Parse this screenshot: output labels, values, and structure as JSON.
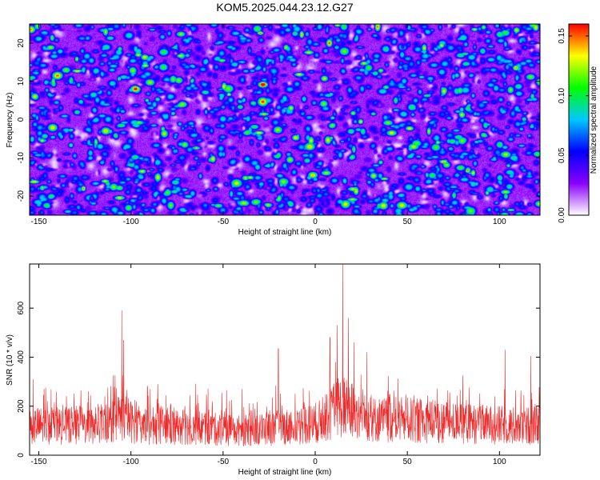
{
  "title": "KOM5.2025.044.23.12.G27",
  "colors": {
    "background": "#ffffff",
    "snr_line": "#ee2a2a",
    "axis": "#000000"
  },
  "chart_data": [
    {
      "type": "heatmap",
      "xlabel": "Height of straight line (km)",
      "ylabel": "Frequency (Hz)",
      "xlim": [
        -155,
        122
      ],
      "ylim": [
        -25,
        25
      ],
      "x_ticks": [
        -150,
        -100,
        -50,
        0,
        50,
        100
      ],
      "y_ticks": [
        -20,
        -10,
        0,
        10,
        20
      ],
      "colorbar": {
        "label": "Normalized spectral amplitude",
        "range": [
          0,
          0.16
        ],
        "ticks": [
          0.0,
          0.05,
          0.1,
          0.15
        ],
        "tick_labels": [
          "0.00",
          "0.05",
          "0.10",
          "0.15"
        ],
        "colormap": [
          "#ffffff",
          "#8a00ff",
          "#0000ff",
          "#00c8ff",
          "#00ff00",
          "#ffff00",
          "#ff0000"
        ]
      }
    },
    {
      "type": "line",
      "xlabel": "Height of straight line (km)",
      "ylabel": "SNR (10 * v/v)",
      "xlim": [
        -155,
        122
      ],
      "ylim": [
        0,
        780
      ],
      "x_ticks": [
        -150,
        -100,
        -50,
        0,
        50,
        100
      ],
      "y_ticks": [
        0,
        200,
        400,
        600
      ],
      "baseline": 120,
      "peaks": [
        {
          "x": -105,
          "y": 590
        },
        {
          "x": -104,
          "y": 470
        },
        {
          "x": -20,
          "y": 435
        },
        {
          "x": 8,
          "y": 480
        },
        {
          "x": 12,
          "y": 530
        },
        {
          "x": 15,
          "y": 780
        },
        {
          "x": 18,
          "y": 560
        },
        {
          "x": 21,
          "y": 460
        },
        {
          "x": 28,
          "y": 420
        },
        {
          "x": 103,
          "y": 430
        },
        {
          "x": 117,
          "y": 405
        }
      ]
    }
  ]
}
